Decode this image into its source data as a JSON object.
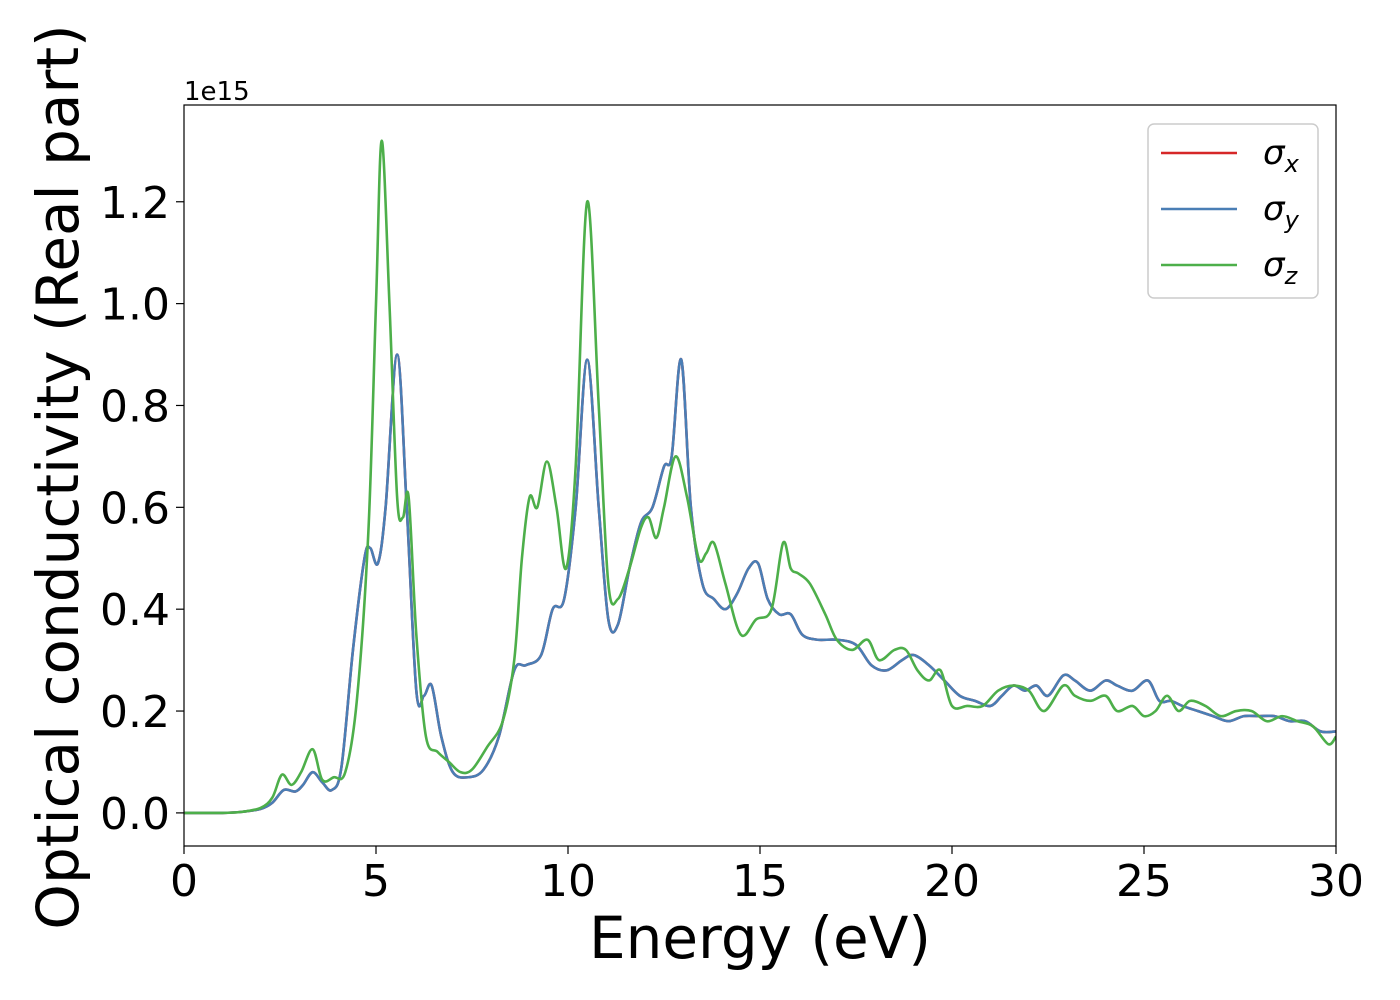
{
  "chart_data": {
    "type": "line",
    "xlabel": "Energy (eV)",
    "ylabel": "Optical conductivity (Real part)",
    "y_offset_label": "1e15",
    "y_scale_factor": 1000000000000000.0,
    "xlim": [
      0,
      30
    ],
    "ylim": [
      -0.065,
      1.39
    ],
    "xticks": [
      0,
      5,
      10,
      15,
      20,
      25,
      30
    ],
    "xtick_labels": [
      "0",
      "5",
      "10",
      "15",
      "20",
      "25",
      "30"
    ],
    "yticks": [
      0.0,
      0.2,
      0.4,
      0.6,
      0.8,
      1.0,
      1.2
    ],
    "ytick_labels": [
      "0.0",
      "0.2",
      "0.4",
      "0.6",
      "0.8",
      "1.0",
      "1.2"
    ],
    "grid": false,
    "legend_position": "top-right",
    "series": [
      {
        "name": "σx",
        "legend_base": "σ",
        "legend_sub": "x",
        "color": "#d62728",
        "x": [
          0,
          1,
          1.5,
          2,
          2.3,
          2.6,
          2.9,
          3.1,
          3.35,
          3.6,
          3.85,
          4.1,
          4.4,
          4.7,
          4.85,
          5.05,
          5.25,
          5.55,
          5.8,
          6.05,
          6.25,
          6.45,
          6.7,
          7.0,
          7.4,
          7.8,
          8.2,
          8.6,
          8.9,
          9.3,
          9.6,
          9.9,
          10.2,
          10.5,
          10.8,
          11.05,
          11.3,
          11.6,
          11.9,
          12.2,
          12.5,
          12.7,
          12.95,
          13.2,
          13.5,
          13.8,
          14.1,
          14.4,
          14.7,
          14.95,
          15.2,
          15.5,
          15.8,
          16.1,
          16.5,
          17.0,
          17.5,
          17.9,
          18.3,
          18.7,
          19.0,
          19.4,
          19.8,
          20.2,
          20.6,
          21.0,
          21.3,
          21.6,
          21.9,
          22.2,
          22.5,
          22.9,
          23.2,
          23.6,
          24.0,
          24.3,
          24.7,
          25.1,
          25.4,
          25.7,
          26.0,
          26.4,
          26.8,
          27.2,
          27.6,
          28.0,
          28.4,
          28.8,
          29.2,
          29.6,
          30.0
        ],
        "y": [
          0,
          0,
          0.002,
          0.008,
          0.02,
          0.045,
          0.042,
          0.055,
          0.08,
          0.06,
          0.045,
          0.09,
          0.32,
          0.5,
          0.52,
          0.49,
          0.6,
          0.9,
          0.6,
          0.24,
          0.23,
          0.25,
          0.15,
          0.08,
          0.07,
          0.085,
          0.15,
          0.28,
          0.29,
          0.31,
          0.4,
          0.42,
          0.6,
          0.89,
          0.6,
          0.38,
          0.37,
          0.48,
          0.57,
          0.6,
          0.68,
          0.7,
          0.89,
          0.6,
          0.45,
          0.42,
          0.4,
          0.43,
          0.48,
          0.49,
          0.42,
          0.39,
          0.39,
          0.35,
          0.34,
          0.34,
          0.33,
          0.29,
          0.28,
          0.3,
          0.31,
          0.29,
          0.26,
          0.23,
          0.22,
          0.21,
          0.23,
          0.25,
          0.24,
          0.25,
          0.23,
          0.27,
          0.26,
          0.24,
          0.26,
          0.25,
          0.24,
          0.26,
          0.22,
          0.22,
          0.21,
          0.2,
          0.19,
          0.18,
          0.19,
          0.19,
          0.19,
          0.18,
          0.18,
          0.16,
          0.16
        ]
      },
      {
        "name": "σy",
        "legend_base": "σ",
        "legend_sub": "y",
        "color": "#4a7eb5",
        "x": [
          0,
          1,
          1.5,
          2,
          2.3,
          2.6,
          2.9,
          3.1,
          3.35,
          3.6,
          3.85,
          4.1,
          4.4,
          4.7,
          4.85,
          5.05,
          5.25,
          5.55,
          5.8,
          6.05,
          6.25,
          6.45,
          6.7,
          7.0,
          7.4,
          7.8,
          8.2,
          8.6,
          8.9,
          9.3,
          9.6,
          9.9,
          10.2,
          10.5,
          10.8,
          11.05,
          11.3,
          11.6,
          11.9,
          12.2,
          12.5,
          12.7,
          12.95,
          13.2,
          13.5,
          13.8,
          14.1,
          14.4,
          14.7,
          14.95,
          15.2,
          15.5,
          15.8,
          16.1,
          16.5,
          17.0,
          17.5,
          17.9,
          18.3,
          18.7,
          19.0,
          19.4,
          19.8,
          20.2,
          20.6,
          21.0,
          21.3,
          21.6,
          21.9,
          22.2,
          22.5,
          22.9,
          23.2,
          23.6,
          24.0,
          24.3,
          24.7,
          25.1,
          25.4,
          25.7,
          26.0,
          26.4,
          26.8,
          27.2,
          27.6,
          28.0,
          28.4,
          28.8,
          29.2,
          29.6,
          30.0
        ],
        "y": [
          0,
          0,
          0.002,
          0.008,
          0.02,
          0.045,
          0.042,
          0.055,
          0.08,
          0.06,
          0.045,
          0.09,
          0.32,
          0.5,
          0.52,
          0.49,
          0.6,
          0.9,
          0.6,
          0.24,
          0.23,
          0.25,
          0.15,
          0.08,
          0.07,
          0.085,
          0.15,
          0.28,
          0.29,
          0.31,
          0.4,
          0.42,
          0.6,
          0.89,
          0.6,
          0.38,
          0.37,
          0.48,
          0.57,
          0.6,
          0.68,
          0.7,
          0.89,
          0.6,
          0.45,
          0.42,
          0.4,
          0.43,
          0.48,
          0.49,
          0.42,
          0.39,
          0.39,
          0.35,
          0.34,
          0.34,
          0.33,
          0.29,
          0.28,
          0.3,
          0.31,
          0.29,
          0.26,
          0.23,
          0.22,
          0.21,
          0.23,
          0.25,
          0.24,
          0.25,
          0.23,
          0.27,
          0.26,
          0.24,
          0.26,
          0.25,
          0.24,
          0.26,
          0.22,
          0.22,
          0.21,
          0.2,
          0.19,
          0.18,
          0.19,
          0.19,
          0.19,
          0.18,
          0.18,
          0.16,
          0.16
        ]
      },
      {
        "name": "σz",
        "legend_base": "σ",
        "legend_sub": "z",
        "color": "#4daf4a",
        "x": [
          0,
          1,
          1.5,
          2,
          2.3,
          2.55,
          2.8,
          3.05,
          3.35,
          3.6,
          3.9,
          4.2,
          4.5,
          4.8,
          5.0,
          5.15,
          5.35,
          5.55,
          5.7,
          5.85,
          6.05,
          6.3,
          6.6,
          6.9,
          7.2,
          7.5,
          7.9,
          8.3,
          8.6,
          8.8,
          9.0,
          9.2,
          9.45,
          9.7,
          9.95,
          10.2,
          10.5,
          10.8,
          11.05,
          11.3,
          11.6,
          11.9,
          12.1,
          12.3,
          12.5,
          12.8,
          13.1,
          13.4,
          13.6,
          13.8,
          14.1,
          14.5,
          14.9,
          15.3,
          15.6,
          15.8,
          16.0,
          16.3,
          16.7,
          17.0,
          17.4,
          17.8,
          18.1,
          18.5,
          18.8,
          19.1,
          19.4,
          19.7,
          20.0,
          20.4,
          20.8,
          21.2,
          21.6,
          22.0,
          22.4,
          22.9,
          23.2,
          23.6,
          24.0,
          24.3,
          24.7,
          25.0,
          25.3,
          25.6,
          25.9,
          26.2,
          26.6,
          27.0,
          27.4,
          27.8,
          28.2,
          28.6,
          29.0,
          29.4,
          29.8,
          30.0
        ],
        "y": [
          0,
          0,
          0.002,
          0.01,
          0.03,
          0.075,
          0.055,
          0.08,
          0.125,
          0.065,
          0.07,
          0.08,
          0.22,
          0.55,
          1.0,
          1.32,
          1.0,
          0.62,
          0.58,
          0.62,
          0.35,
          0.15,
          0.12,
          0.1,
          0.08,
          0.085,
          0.13,
          0.18,
          0.3,
          0.5,
          0.62,
          0.6,
          0.69,
          0.6,
          0.48,
          0.68,
          1.2,
          0.8,
          0.45,
          0.42,
          0.48,
          0.56,
          0.58,
          0.54,
          0.6,
          0.7,
          0.62,
          0.5,
          0.51,
          0.53,
          0.45,
          0.35,
          0.38,
          0.4,
          0.53,
          0.48,
          0.47,
          0.45,
          0.39,
          0.34,
          0.32,
          0.34,
          0.3,
          0.32,
          0.32,
          0.28,
          0.26,
          0.28,
          0.21,
          0.21,
          0.21,
          0.24,
          0.25,
          0.24,
          0.2,
          0.25,
          0.23,
          0.22,
          0.23,
          0.2,
          0.21,
          0.19,
          0.2,
          0.23,
          0.2,
          0.22,
          0.21,
          0.19,
          0.2,
          0.2,
          0.18,
          0.19,
          0.18,
          0.17,
          0.135,
          0.15
        ]
      }
    ]
  }
}
